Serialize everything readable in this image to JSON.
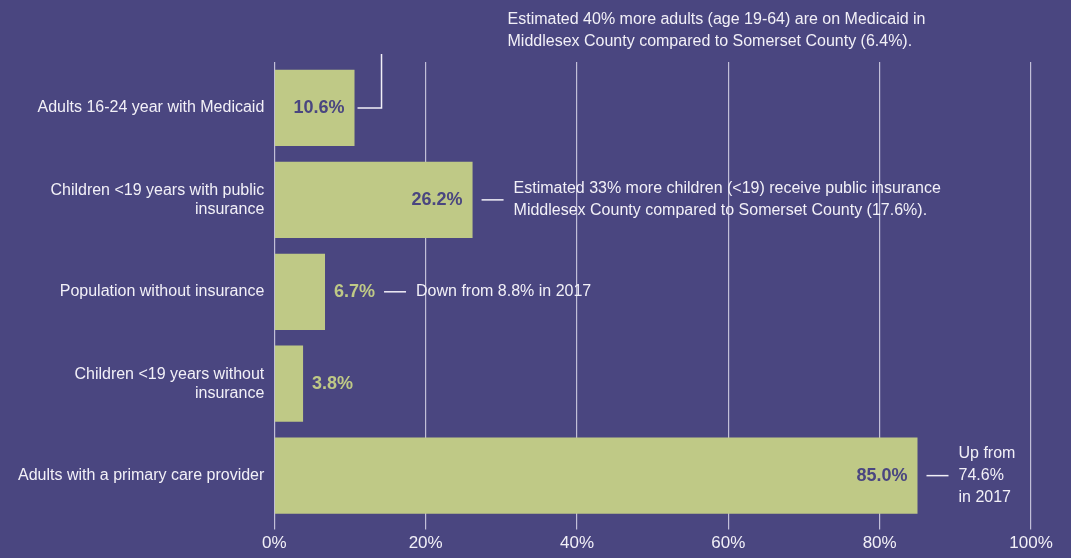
{
  "chart_data": {
    "type": "bar",
    "orientation": "horizontal",
    "categories": [
      "Adults 16-24 year with Medicaid",
      "Children <19 years with public insurance",
      "Population without insurance",
      "Children <19 years without insurance",
      "Adults with a primary care provider"
    ],
    "values": [
      10.6,
      26.2,
      6.7,
      3.8,
      85.0
    ],
    "value_labels": [
      "10.6%",
      "26.2%",
      "6.7%",
      "3.8%",
      "85.0%"
    ],
    "color": "#bfc986",
    "xlim": [
      0,
      100
    ],
    "xticks": [
      {
        "value": 0,
        "label": "0%"
      },
      {
        "value": 20,
        "label": "20%"
      },
      {
        "value": 40,
        "label": "40%"
      },
      {
        "value": 60,
        "label": "60%"
      },
      {
        "value": 80,
        "label": "80%"
      },
      {
        "value": 100,
        "label": "100%"
      }
    ],
    "grid": "x",
    "legend": false,
    "annotations": [
      "Estimated 40% more adults (age 19-64) are on Medicaid in\nMiddlesex County compared to Somerset County (6.4%).",
      {
        "text": "Estimated 33% more children (<19) receive public insurance\nMiddlesex County compared to Somerset County (17.6%).",
        "x": 26.2,
        "y": "Children <19 years with public insurance"
      },
      "Down from 8.8% in 2017",
      {
        "text": "Up from\n74.6%\nin 2017",
        "x": 85.0,
        "y": "Adults with a primary care provider"
      }
    ]
  }
}
